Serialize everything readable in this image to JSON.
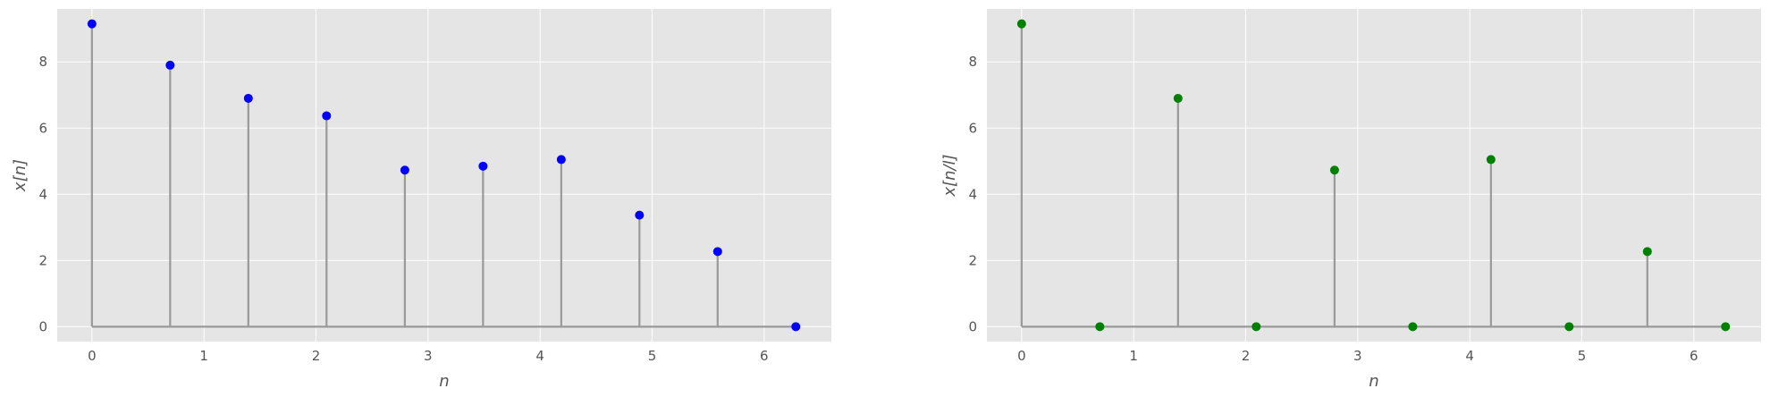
{
  "chart_data": [
    {
      "type": "stem",
      "xlabel": "n",
      "ylabel": "x[n]",
      "xlim": [
        -0.31,
        6.6
      ],
      "ylim": [
        -0.45,
        9.6
      ],
      "xticks": [
        0,
        1,
        2,
        3,
        4,
        5,
        6
      ],
      "yticks": [
        0,
        2,
        4,
        6,
        8
      ],
      "grid": true,
      "background": "#e5e5e5",
      "grid_color": "#ffffff",
      "stem_color": "#999999",
      "marker_color": "#0000ff",
      "series": [
        {
          "x": [
            0,
            0.698,
            1.396,
            2.094,
            2.793,
            3.491,
            4.189,
            4.887,
            5.585,
            6.283
          ],
          "y": [
            9.15,
            7.9,
            6.9,
            6.37,
            4.73,
            4.85,
            5.05,
            3.37,
            2.27,
            0.0
          ]
        }
      ]
    },
    {
      "type": "stem",
      "xlabel": "n",
      "ylabel": "x[n/l]",
      "xlim": [
        -0.31,
        6.6
      ],
      "ylim": [
        -0.45,
        9.6
      ],
      "xticks": [
        0,
        1,
        2,
        3,
        4,
        5,
        6
      ],
      "yticks": [
        0,
        2,
        4,
        6,
        8
      ],
      "grid": true,
      "background": "#e5e5e5",
      "grid_color": "#ffffff",
      "stem_color": "#999999",
      "marker_color": "#008000",
      "series": [
        {
          "x": [
            0,
            0.698,
            1.396,
            2.094,
            2.793,
            3.491,
            4.189,
            4.887,
            5.585,
            6.283
          ],
          "y": [
            9.15,
            0.0,
            6.9,
            0.0,
            4.73,
            0.0,
            5.05,
            0.0,
            2.27,
            0.0
          ]
        }
      ]
    }
  ]
}
